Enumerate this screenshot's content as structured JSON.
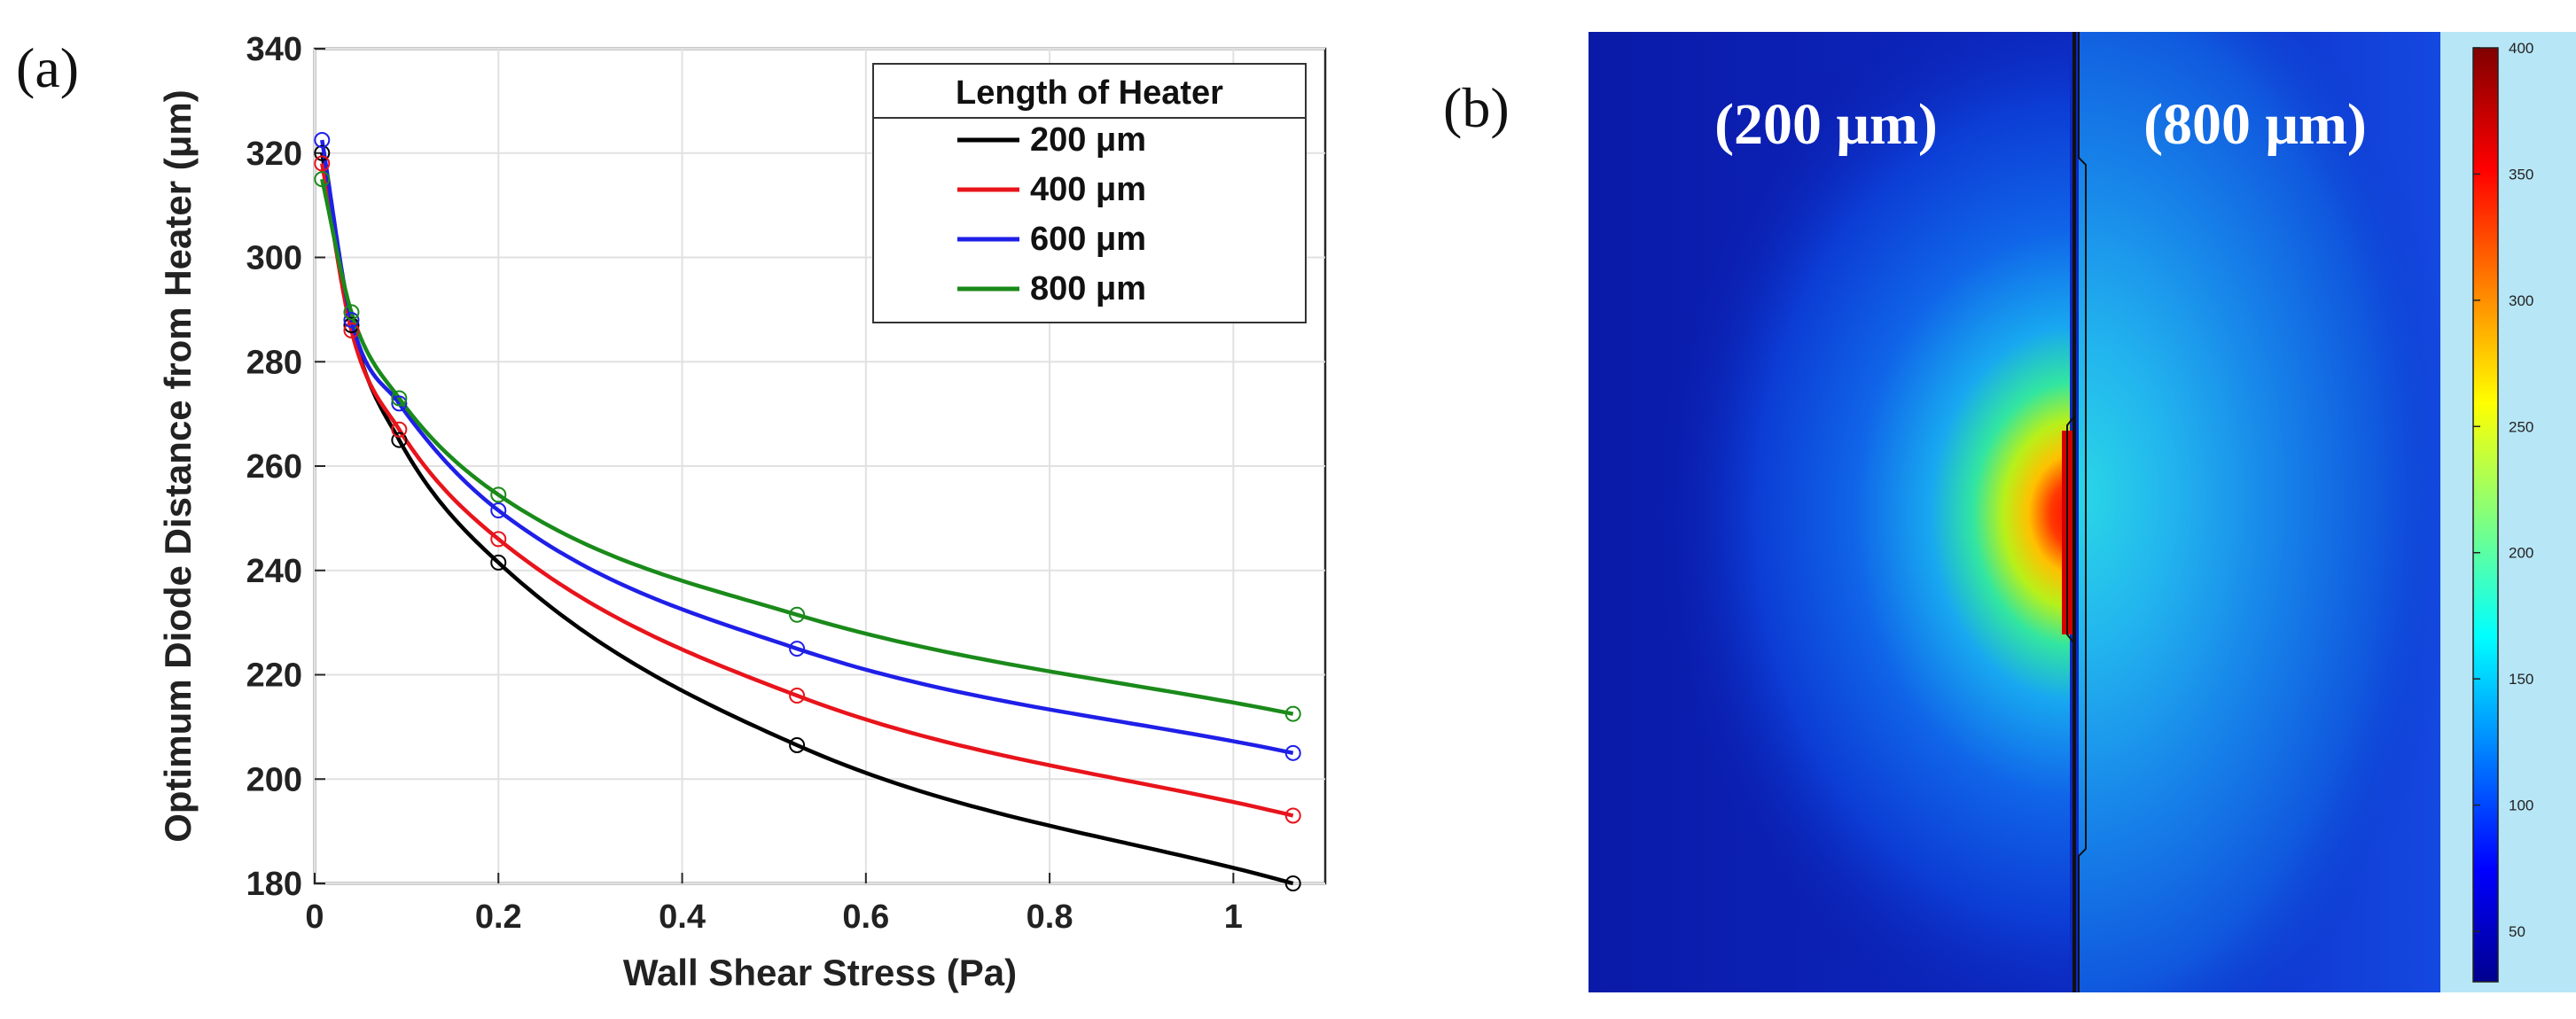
{
  "panels": {
    "a_label": "(a)",
    "b_label": "(b)"
  },
  "chart_data": {
    "type": "line",
    "title": "",
    "xlabel": "Wall Shear Stress (Pa)",
    "ylabel": "Optimum Diode Distance from Heater (μm)",
    "xlim": [
      0,
      1.1
    ],
    "ylim": [
      180,
      340
    ],
    "xticks": [
      0,
      0.2,
      0.4,
      0.6,
      0.8,
      1
    ],
    "xtick_labels": [
      "0",
      "0.2",
      "0.4",
      "0.6",
      "0.8",
      "1"
    ],
    "yticks": [
      180,
      200,
      220,
      240,
      260,
      280,
      300,
      320,
      340
    ],
    "ytick_labels": [
      "180",
      "200",
      "220",
      "240",
      "260",
      "280",
      "300",
      "320",
      "340"
    ],
    "grid": true,
    "legend": {
      "title": "Length of Heater",
      "placement": "top-right"
    },
    "x": [
      0.008,
      0.04,
      0.092,
      0.2,
      0.525,
      1.065
    ],
    "series": [
      {
        "name": "200 μm",
        "color": "#000000",
        "values": [
          320,
          287,
          265,
          241.5,
          206.5,
          180
        ]
      },
      {
        "name": "400 μm",
        "color": "#e8141b",
        "values": [
          318,
          286,
          267,
          246,
          216,
          193
        ]
      },
      {
        "name": "600 μm",
        "color": "#1f1fe8",
        "values": [
          322.5,
          288,
          272,
          251.5,
          225,
          205
        ]
      },
      {
        "name": "800 μm",
        "color": "#1a8a1a",
        "values": [
          315,
          289.5,
          273,
          254.5,
          231.5,
          212.5
        ]
      }
    ]
  },
  "simulation": {
    "left_label": "(200 μm)",
    "right_label": "(800 μm)",
    "colorbar": {
      "ticks": [
        50,
        100,
        150,
        200,
        250,
        300,
        350,
        400
      ],
      "tick_labels": [
        "50",
        "100",
        "150",
        "200",
        "250",
        "300",
        "350",
        "400"
      ],
      "min": 30,
      "max": 400
    }
  }
}
